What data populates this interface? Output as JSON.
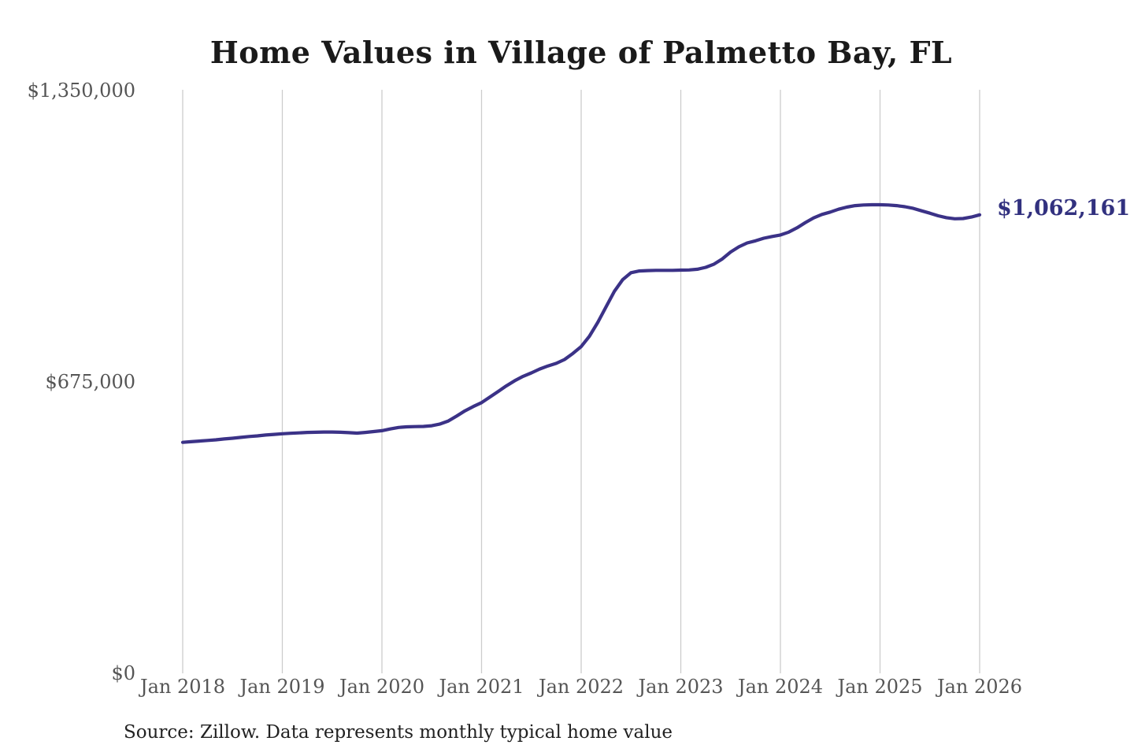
{
  "page": {
    "background_color": "#ffffff"
  },
  "chart_data": {
    "type": "line",
    "title": "Home Values in Village of Palmetto Bay, FL",
    "source_note": "Source: Zillow. Data represents monthly typical home value",
    "end_label": "$1,062,161",
    "line_color": "#3b3287",
    "end_label_color": "#32317f",
    "gridline_color": "#cccccc",
    "axis_label_color": "#555555",
    "title_color": "#1a1a1a",
    "grid": "vertical-year-gridlines-only",
    "legend_position": "none",
    "xlabel": "",
    "ylabel": "",
    "ylim": [
      0,
      1350000
    ],
    "y_ticks": [
      {
        "value": 0,
        "label": "$0"
      },
      {
        "value": 675000,
        "label": "$675,000"
      },
      {
        "value": 1350000,
        "label": "$1,350,000"
      }
    ],
    "x_ticks": [
      "Jan 2018",
      "Jan 2019",
      "Jan 2020",
      "Jan 2021",
      "Jan 2022",
      "Jan 2023",
      "Jan 2024",
      "Jan 2025",
      "Jan 2026"
    ],
    "series": [
      {
        "name": "Monthly typical home value",
        "start_month": "Jan 2018",
        "frequency": "monthly",
        "final_value": 1062161,
        "values": [
          535000,
          536500,
          538000,
          539500,
          541000,
          543000,
          544500,
          546500,
          548500,
          550000,
          552000,
          553500,
          555000,
          556000,
          557000,
          558000,
          558500,
          559000,
          559000,
          558500,
          557500,
          556500,
          558000,
          560000,
          562000,
          566000,
          569500,
          571000,
          571500,
          572000,
          573500,
          577500,
          584500,
          596000,
          608000,
          618000,
          627000,
          640000,
          653000,
          666000,
          678000,
          688000,
          696000,
          705000,
          712000,
          718000,
          727000,
          741000,
          757000,
          781000,
          813000,
          849000,
          885000,
          912000,
          928000,
          932000,
          933000,
          933500,
          933500,
          933500,
          934000,
          934500,
          936000,
          940500,
          948000,
          960000,
          976000,
          988000,
          997000,
          1002000,
          1008000,
          1012000,
          1015500,
          1022000,
          1032000,
          1044000,
          1055000,
          1063000,
          1068500,
          1075000,
          1080000,
          1083500,
          1085000,
          1085500,
          1085500,
          1085000,
          1083500,
          1081000,
          1077000,
          1071500,
          1066000,
          1060000,
          1055500,
          1053000,
          1053500,
          1057000,
          1062161
        ]
      }
    ]
  }
}
